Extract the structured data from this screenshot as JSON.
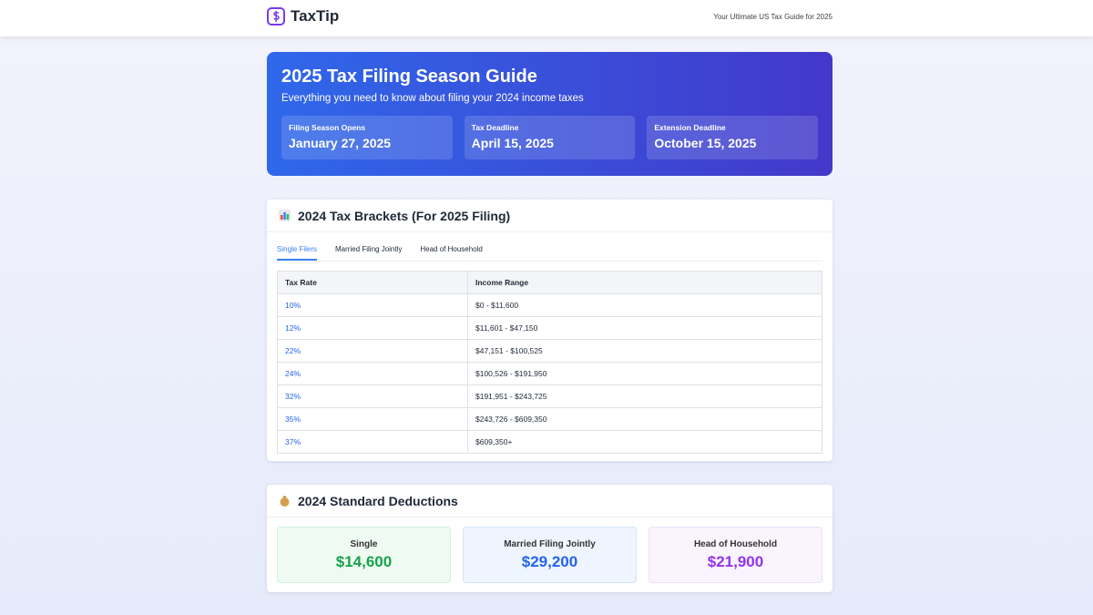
{
  "header": {
    "logo": "TaxTip",
    "tagline": "Your Ultimate US Tax Guide for 2025"
  },
  "hero": {
    "title": "2025 Tax Filing Season Guide",
    "subtitle": "Everything you need to know about filing your 2024 income taxes",
    "dates": [
      {
        "label": "Filing Season Opens",
        "value": "January 27, 2025"
      },
      {
        "label": "Tax Deadline",
        "value": "April 15, 2025"
      },
      {
        "label": "Extension Deadline",
        "value": "October 15, 2025"
      }
    ]
  },
  "brackets": {
    "title": "2024 Tax Brackets (For 2025 Filing)",
    "tabs": [
      "Single Filers",
      "Married Filing Jointly",
      "Head of Household"
    ],
    "active_tab": 0,
    "table": {
      "columns": [
        "Tax Rate",
        "Income Range"
      ],
      "rows": [
        [
          "10%",
          "$0 - $11,600"
        ],
        [
          "12%",
          "$11,601 - $47,150"
        ],
        [
          "22%",
          "$47,151 - $100,525"
        ],
        [
          "24%",
          "$100,526 - $191,950"
        ],
        [
          "32%",
          "$191,951 - $243,725"
        ],
        [
          "35%",
          "$243,726 - $609,350"
        ],
        [
          "37%",
          "$609,350+"
        ]
      ]
    }
  },
  "deductions": {
    "title": "2024 Standard Deductions",
    "items": [
      {
        "label": "Single",
        "value": "$14,600"
      },
      {
        "label": "Married Filing Jointly",
        "value": "$29,200"
      },
      {
        "label": "Head of Household",
        "value": "$21,900"
      }
    ]
  }
}
